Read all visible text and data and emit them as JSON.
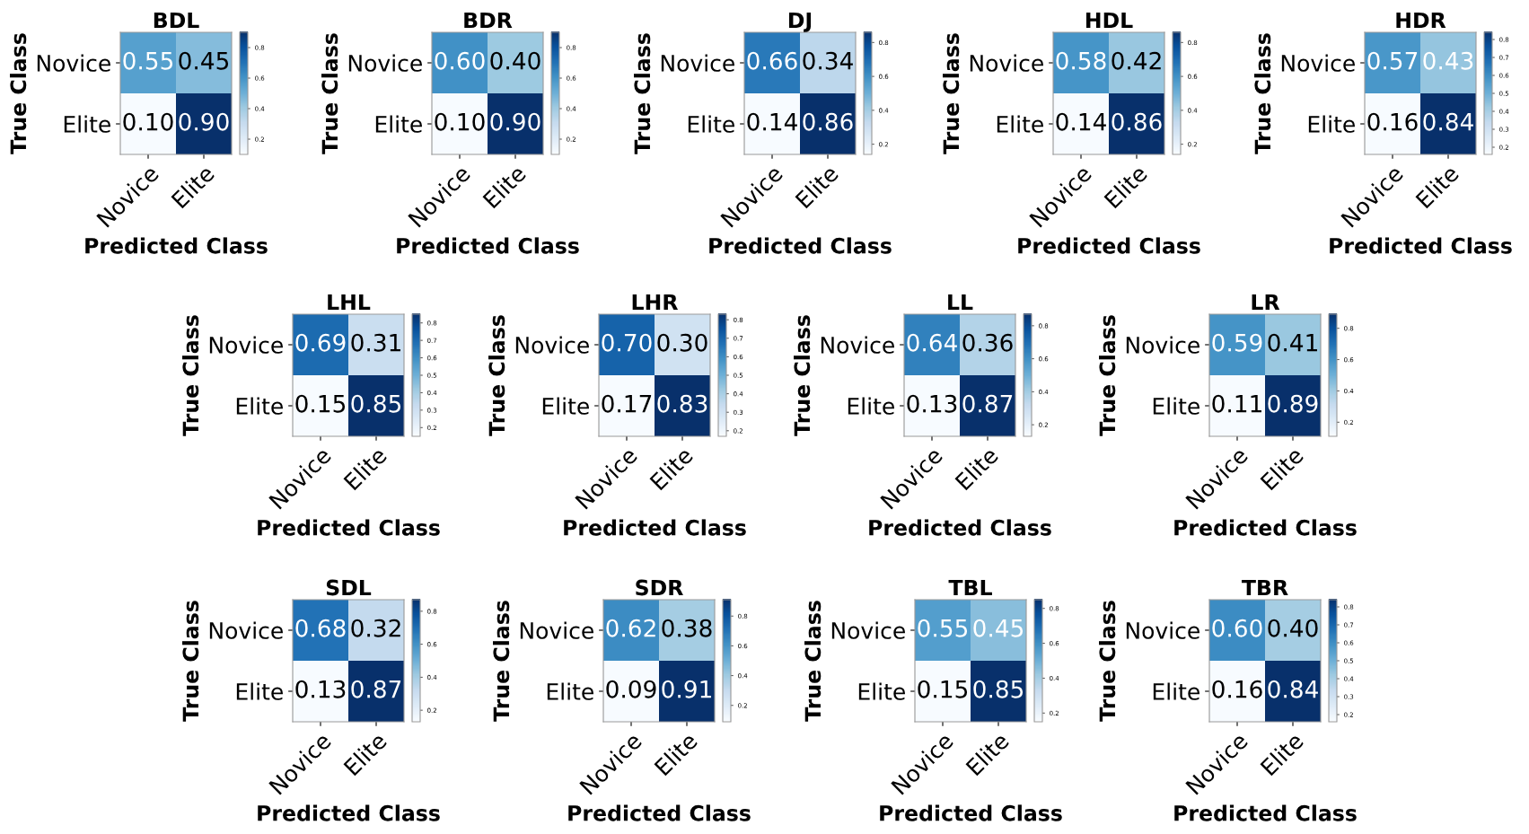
{
  "chart_data": [
    {
      "type": "heatmap",
      "title": "BDL",
      "xlabel": "Predicted Class",
      "ylabel": "True Class",
      "categories": [
        "Novice",
        "Elite"
      ],
      "y_categories": [
        "Novice",
        "Elite"
      ],
      "cells": [
        [
          0.55,
          0.45
        ],
        [
          0.1,
          0.9
        ]
      ],
      "cell_labels": [
        [
          "0.55",
          "0.45"
        ],
        [
          "0.10",
          "0.90"
        ]
      ],
      "clim": [
        0.1,
        0.9
      ],
      "cticks": [
        0.2,
        0.4,
        0.6,
        0.8
      ]
    },
    {
      "type": "heatmap",
      "title": "BDR",
      "xlabel": "Predicted Class",
      "ylabel": "True Class",
      "categories": [
        "Novice",
        "Elite"
      ],
      "y_categories": [
        "Novice",
        "Elite"
      ],
      "cells": [
        [
          0.6,
          0.4
        ],
        [
          0.1,
          0.9
        ]
      ],
      "cell_labels": [
        [
          "0.60",
          "0.40"
        ],
        [
          "0.10",
          "0.90"
        ]
      ],
      "clim": [
        0.1,
        0.9
      ],
      "cticks": [
        0.2,
        0.4,
        0.6,
        0.8
      ]
    },
    {
      "type": "heatmap",
      "title": "DJ",
      "xlabel": "Predicted Class",
      "ylabel": "True Class",
      "categories": [
        "Novice",
        "Elite"
      ],
      "y_categories": [
        "Novice",
        "Elite"
      ],
      "cells": [
        [
          0.66,
          0.34
        ],
        [
          0.14,
          0.86
        ]
      ],
      "cell_labels": [
        [
          "0.66",
          "0.34"
        ],
        [
          "0.14",
          "0.86"
        ]
      ],
      "clim": [
        0.14,
        0.86
      ],
      "cticks": [
        0.2,
        0.4,
        0.6,
        0.8
      ]
    },
    {
      "type": "heatmap",
      "title": "HDL",
      "xlabel": "Predicted Class",
      "ylabel": "True Class",
      "categories": [
        "Novice",
        "Elite"
      ],
      "y_categories": [
        "Novice",
        "Elite"
      ],
      "cells": [
        [
          0.58,
          0.42
        ],
        [
          0.14,
          0.86
        ]
      ],
      "cell_labels": [
        [
          "0.58",
          "0.42"
        ],
        [
          "0.14",
          "0.86"
        ]
      ],
      "clim": [
        0.14,
        0.86
      ],
      "cticks": [
        0.2,
        0.4,
        0.6,
        0.8
      ]
    },
    {
      "type": "heatmap",
      "title": "HDR",
      "xlabel": "Predicted Class",
      "ylabel": "True Class",
      "categories": [
        "Novice",
        "Elite"
      ],
      "y_categories": [
        "Novice",
        "Elite"
      ],
      "cells": [
        [
          0.57,
          0.43
        ],
        [
          0.16,
          0.84
        ]
      ],
      "cell_labels": [
        [
          "0.57",
          "0.43"
        ],
        [
          "0.16",
          "0.84"
        ]
      ],
      "clim": [
        0.16,
        0.84
      ],
      "cticks": [
        0.2,
        0.3,
        0.4,
        0.5,
        0.6,
        0.7,
        0.8
      ]
    },
    {
      "type": "heatmap",
      "title": "LHL",
      "xlabel": "Predicted Class",
      "ylabel": "True Class",
      "categories": [
        "Novice",
        "Elite"
      ],
      "y_categories": [
        "Novice",
        "Elite"
      ],
      "cells": [
        [
          0.69,
          0.31
        ],
        [
          0.15,
          0.85
        ]
      ],
      "cell_labels": [
        [
          "0.69",
          "0.31"
        ],
        [
          "0.15",
          "0.85"
        ]
      ],
      "clim": [
        0.15,
        0.85
      ],
      "cticks": [
        0.2,
        0.3,
        0.4,
        0.5,
        0.6,
        0.7,
        0.8
      ]
    },
    {
      "type": "heatmap",
      "title": "LHR",
      "xlabel": "Predicted Class",
      "ylabel": "True Class",
      "categories": [
        "Novice",
        "Elite"
      ],
      "y_categories": [
        "Novice",
        "Elite"
      ],
      "cells": [
        [
          0.7,
          0.3
        ],
        [
          0.17,
          0.83
        ]
      ],
      "cell_labels": [
        [
          "0.70",
          "0.30"
        ],
        [
          "0.17",
          "0.83"
        ]
      ],
      "clim": [
        0.17,
        0.83
      ],
      "cticks": [
        0.2,
        0.3,
        0.4,
        0.5,
        0.6,
        0.7,
        0.8
      ]
    },
    {
      "type": "heatmap",
      "title": "LL",
      "xlabel": "Predicted Class",
      "ylabel": "True Class",
      "categories": [
        "Novice",
        "Elite"
      ],
      "y_categories": [
        "Novice",
        "Elite"
      ],
      "cells": [
        [
          0.64,
          0.36
        ],
        [
          0.13,
          0.87
        ]
      ],
      "cell_labels": [
        [
          "0.64",
          "0.36"
        ],
        [
          "0.13",
          "0.87"
        ]
      ],
      "clim": [
        0.13,
        0.87
      ],
      "cticks": [
        0.2,
        0.4,
        0.6,
        0.8
      ]
    },
    {
      "type": "heatmap",
      "title": "LR",
      "xlabel": "Predicted Class",
      "ylabel": "True Class",
      "categories": [
        "Novice",
        "Elite"
      ],
      "y_categories": [
        "Novice",
        "Elite"
      ],
      "cells": [
        [
          0.59,
          0.41
        ],
        [
          0.11,
          0.89
        ]
      ],
      "cell_labels": [
        [
          "0.59",
          "0.41"
        ],
        [
          "0.11",
          "0.89"
        ]
      ],
      "clim": [
        0.11,
        0.89
      ],
      "cticks": [
        0.2,
        0.4,
        0.6,
        0.8
      ]
    },
    {
      "type": "heatmap",
      "title": "SDL",
      "xlabel": "Predicted Class",
      "ylabel": "True Class",
      "categories": [
        "Novice",
        "Elite"
      ],
      "y_categories": [
        "Novice",
        "Elite"
      ],
      "cells": [
        [
          0.68,
          0.32
        ],
        [
          0.13,
          0.87
        ]
      ],
      "cell_labels": [
        [
          "0.68",
          "0.32"
        ],
        [
          "0.13",
          "0.87"
        ]
      ],
      "clim": [
        0.13,
        0.87
      ],
      "cticks": [
        0.2,
        0.4,
        0.6,
        0.8
      ]
    },
    {
      "type": "heatmap",
      "title": "SDR",
      "xlabel": "Predicted Class",
      "ylabel": "True Class",
      "categories": [
        "Novice",
        "Elite"
      ],
      "y_categories": [
        "Novice",
        "Elite"
      ],
      "cells": [
        [
          0.62,
          0.38
        ],
        [
          0.09,
          0.91
        ]
      ],
      "cell_labels": [
        [
          "0.62",
          "0.38"
        ],
        [
          "0.09",
          "0.91"
        ]
      ],
      "clim": [
        0.09,
        0.91
      ],
      "cticks": [
        0.2,
        0.4,
        0.6,
        0.8
      ]
    },
    {
      "type": "heatmap",
      "title": "TBL",
      "xlabel": "Predicted Class",
      "ylabel": "True Class",
      "categories": [
        "Novice",
        "Elite"
      ],
      "y_categories": [
        "Novice",
        "Elite"
      ],
      "cells": [
        [
          0.55,
          0.45
        ],
        [
          0.15,
          0.85
        ]
      ],
      "cell_labels": [
        [
          "0.55",
          "0.45"
        ],
        [
          "0.15",
          "0.85"
        ]
      ],
      "clim": [
        0.15,
        0.85
      ],
      "cticks": [
        0.2,
        0.4,
        0.6,
        0.8
      ]
    },
    {
      "type": "heatmap",
      "title": "TBR",
      "xlabel": "Predicted Class",
      "ylabel": "True Class",
      "categories": [
        "Novice",
        "Elite"
      ],
      "y_categories": [
        "Novice",
        "Elite"
      ],
      "cells": [
        [
          0.6,
          0.4
        ],
        [
          0.16,
          0.84
        ]
      ],
      "cell_labels": [
        [
          "0.60",
          "0.40"
        ],
        [
          "0.16",
          "0.84"
        ]
      ],
      "clim": [
        0.16,
        0.84
      ],
      "cticks": [
        0.2,
        0.3,
        0.4,
        0.5,
        0.6,
        0.7,
        0.8
      ]
    }
  ]
}
